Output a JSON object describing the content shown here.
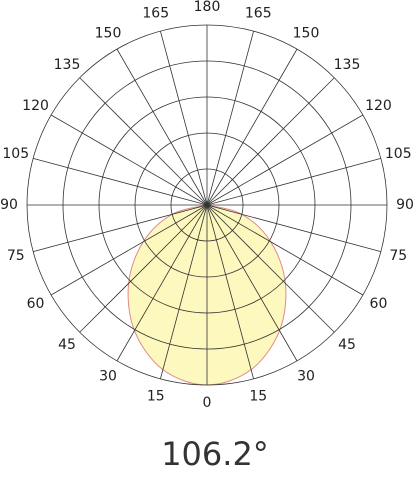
{
  "chart_data": {
    "type": "polar",
    "angle_ticks": [
      0,
      15,
      30,
      45,
      60,
      75,
      90,
      105,
      120,
      135,
      150,
      165,
      180
    ],
    "rlim": [
      0,
      100
    ],
    "rticks": [
      20,
      40,
      60,
      80,
      100
    ],
    "theta": [
      -90,
      -75,
      -60,
      -45,
      -30,
      -15,
      0,
      15,
      30,
      45,
      60,
      75,
      90
    ],
    "values": [
      0,
      20.2,
      40.9,
      61.6,
      80.6,
      94.7,
      100,
      94.7,
      80.6,
      61.6,
      40.9,
      20.2,
      0
    ],
    "color": "#fdf8bd",
    "line_color": "#e08a8a",
    "beam_angle_label": "106.2°"
  }
}
